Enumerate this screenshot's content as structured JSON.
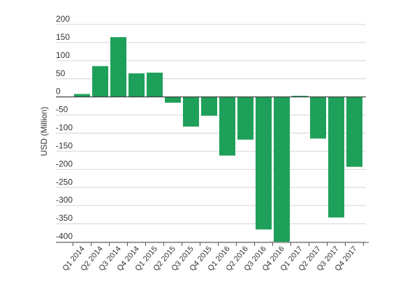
{
  "chart_data": {
    "type": "bar",
    "ylabel": "USD (Million)",
    "ylim": [
      -400,
      200
    ],
    "yticks": [
      200,
      150,
      100,
      50,
      0,
      -50,
      -100,
      -150,
      -200,
      -250,
      -300,
      -350,
      -400
    ],
    "grid": true,
    "bar_color": "#1fa05a",
    "categories": [
      "Q1 2014",
      "Q2 2014",
      "Q3 2014",
      "Q4 2014",
      "Q1 2015",
      "Q2 2015",
      "Q3 2015",
      "Q4 2015",
      "Q1 2016",
      "Q2 2016",
      "Q3 2016",
      "Q4 2016",
      "Q1 2017",
      "Q2 2017",
      "Q3 2017",
      "Q4 2017"
    ],
    "values": [
      8,
      85,
      165,
      65,
      67,
      -16,
      -82,
      -52,
      -162,
      -118,
      -366,
      -400,
      3,
      -115,
      -333,
      -193
    ]
  }
}
